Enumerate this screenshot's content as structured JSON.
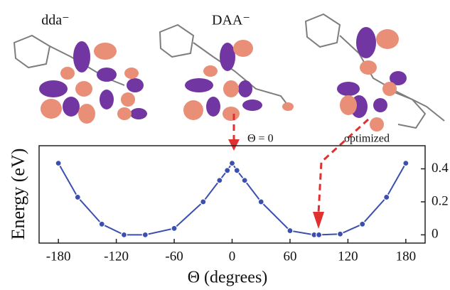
{
  "chart_data": {
    "type": "line",
    "molecule_labels": [
      "dda⁻",
      "DAA⁻"
    ],
    "annotations": [
      "Θ = 0",
      "optimized"
    ],
    "y_label": "Energy (eV)",
    "x_label": "Θ (degrees)",
    "x": [
      -180,
      -160,
      -135,
      -112,
      -90,
      -60,
      -30,
      -13,
      -5,
      0,
      5,
      13,
      30,
      60,
      85,
      90,
      112,
      135,
      160,
      180
    ],
    "series": [
      {
        "color": "#3a4fb0",
        "values": [
          0.434,
          0.228,
          0.065,
          0,
          0,
          0.039,
          0.2,
          0.33,
          0.39,
          0.434,
          0.39,
          0.33,
          0.2,
          0.025,
          0,
          0,
          0.005,
          0.065,
          0.228,
          0.434
        ]
      }
    ],
    "xlim": [
      -200,
      200
    ],
    "xticks": [
      -180,
      -120,
      -60,
      0,
      60,
      120,
      180
    ],
    "ylim": [
      -0.05,
      0.54
    ],
    "yticks": [
      0,
      0.2,
      0.4
    ]
  }
}
